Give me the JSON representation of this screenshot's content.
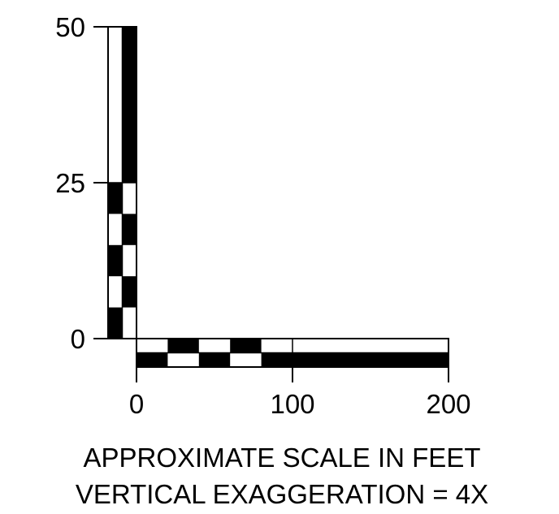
{
  "vertical_axis": {
    "tick_labels": [
      "50",
      "25",
      "0"
    ],
    "values": [
      50,
      25,
      0
    ]
  },
  "horizontal_axis": {
    "tick_labels": [
      "0",
      "100",
      "200"
    ],
    "values": [
      0,
      100,
      200
    ]
  },
  "caption": {
    "line1": "APPROXIMATE SCALE IN FEET",
    "line2": "VERTICAL EXAGGERATION = 4X"
  },
  "colors": {
    "fill": "#000000",
    "background": "#ffffff"
  }
}
